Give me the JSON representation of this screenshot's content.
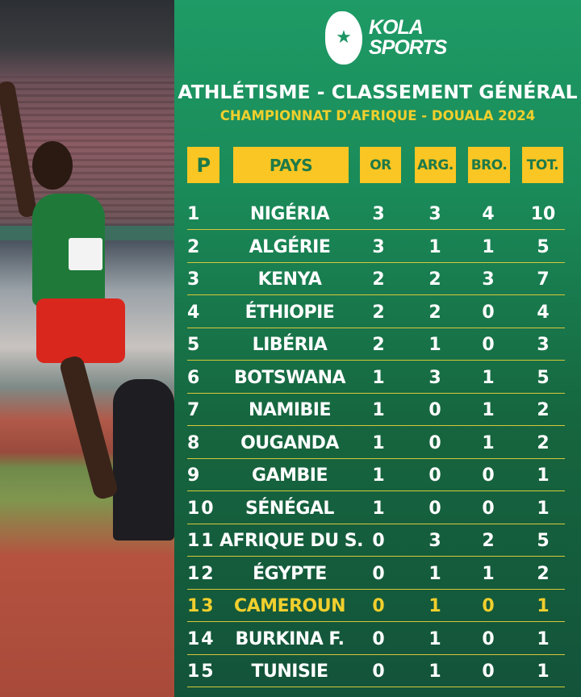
{
  "brand": {
    "logo_text_line1": "KOLA",
    "logo_text_line2": "SPORTS",
    "logo_icon": "kola-nut-star-icon"
  },
  "title": "ATHLÉTISME - CLASSEMENT GÉNÉRAL",
  "subtitle": "CHAMPIONNAT D'AFRIQUE - DOUALA 2024",
  "colors": {
    "panel": "#1a8a59",
    "header_box": "#f9c623",
    "highlight": "#f1cf2d",
    "text": "#ffffff"
  },
  "headers": [
    "P",
    "PAYS",
    "OR",
    "ARG.",
    "BRO.",
    "TOT."
  ],
  "rows": [
    {
      "p": "1",
      "country": "NIGÉRIA",
      "or": "3",
      "arg": "3",
      "bro": "4",
      "tot": "10"
    },
    {
      "p": "2",
      "country": "ALGÉRIE",
      "or": "3",
      "arg": "1",
      "bro": "1",
      "tot": "5"
    },
    {
      "p": "3",
      "country": "KENYA",
      "or": "2",
      "arg": "2",
      "bro": "3",
      "tot": "7"
    },
    {
      "p": "4",
      "country": "ÉTHIOPIE",
      "or": "2",
      "arg": "2",
      "bro": "0",
      "tot": "4"
    },
    {
      "p": "5",
      "country": "LIBÉRIA",
      "or": "2",
      "arg": "1",
      "bro": "0",
      "tot": "3"
    },
    {
      "p": "6",
      "country": "BOTSWANA",
      "or": "1",
      "arg": "3",
      "bro": "1",
      "tot": "5"
    },
    {
      "p": "7",
      "country": "NAMIBIE",
      "or": "1",
      "arg": "0",
      "bro": "1",
      "tot": "2"
    },
    {
      "p": "8",
      "country": "OUGANDA",
      "or": "1",
      "arg": "0",
      "bro": "1",
      "tot": "2"
    },
    {
      "p": "9",
      "country": "GAMBIE",
      "or": "1",
      "arg": "0",
      "bro": "0",
      "tot": "1"
    },
    {
      "p": "10",
      "country": "SÉNÉGAL",
      "or": "1",
      "arg": "0",
      "bro": "0",
      "tot": "1"
    },
    {
      "p": "11",
      "country": "AFRIQUE DU S.",
      "or": "0",
      "arg": "3",
      "bro": "2",
      "tot": "5"
    },
    {
      "p": "12",
      "country": "ÉGYPTE",
      "or": "0",
      "arg": "1",
      "bro": "1",
      "tot": "2"
    },
    {
      "p": "13",
      "country": "CAMEROUN",
      "or": "0",
      "arg": "1",
      "bro": "0",
      "tot": "1",
      "highlight": true
    },
    {
      "p": "14",
      "country": "BURKINA F.",
      "or": "0",
      "arg": "1",
      "bro": "0",
      "tot": "1"
    },
    {
      "p": "15",
      "country": "TUNISIE",
      "or": "0",
      "arg": "1",
      "bro": "0",
      "tot": "1"
    }
  ]
}
